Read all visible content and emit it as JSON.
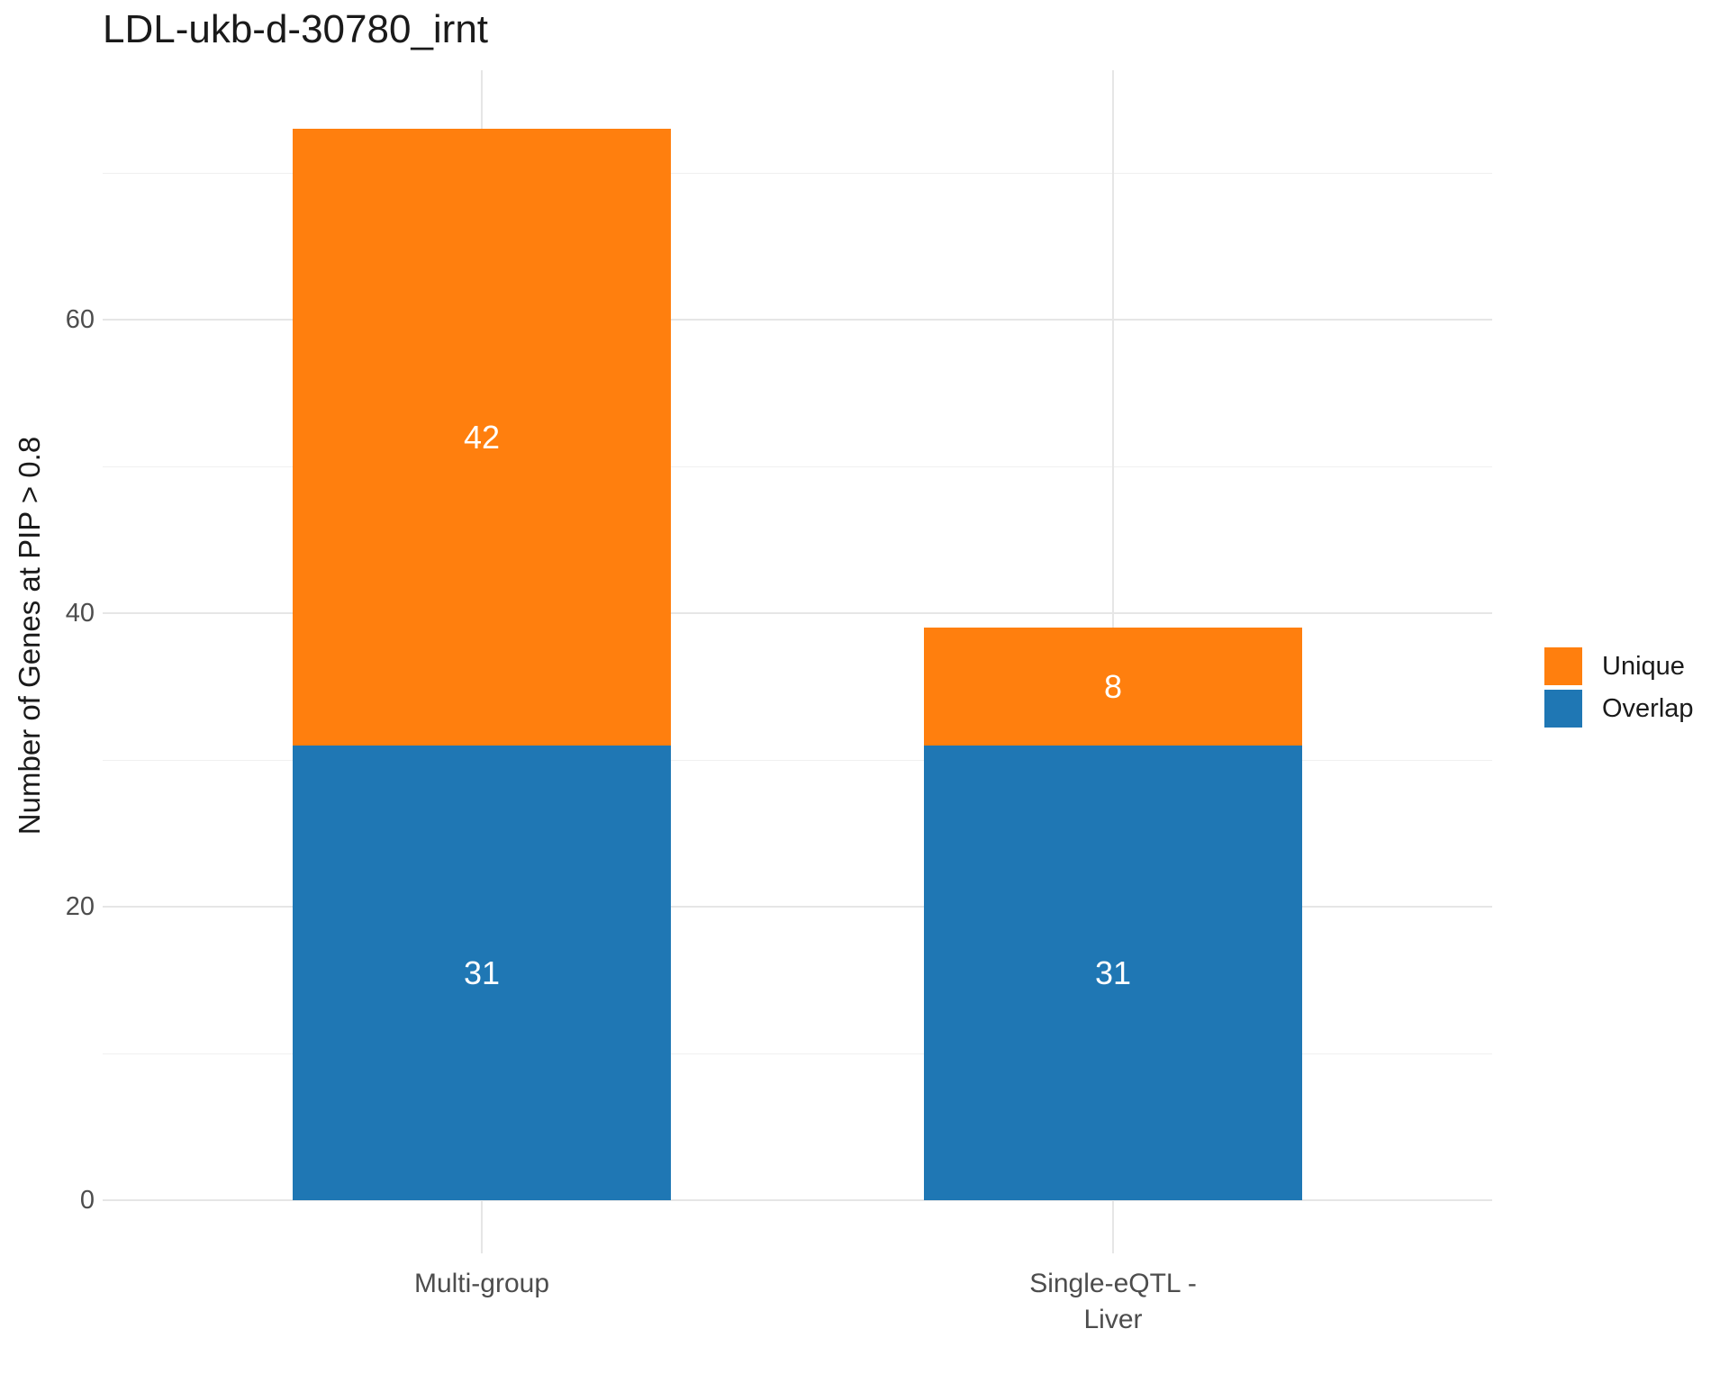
{
  "title": "LDL-ukb-d-30780_irnt",
  "chart_data": {
    "type": "bar",
    "stacked": true,
    "orientation": "vertical",
    "title": "LDL-ukb-d-30780_irnt",
    "xlabel": "",
    "ylabel": "Number of Genes at PIP > 0.8",
    "categories": [
      "Multi-group",
      "Single-eQTL -\nLiver"
    ],
    "series": [
      {
        "name": "Overlap",
        "color": "#1F77B4",
        "values": [
          31,
          31
        ]
      },
      {
        "name": "Unique",
        "color": "#FF7F0E",
        "values": [
          42,
          8
        ]
      }
    ],
    "stack_totals": [
      73,
      39
    ],
    "bar_value_labels": {
      "shown": true,
      "color": "#FFFFFF",
      "values": [
        [
          31,
          31
        ],
        [
          42,
          8
        ]
      ]
    },
    "ylim": [
      0,
      73
    ],
    "yticks_major": [
      0,
      20,
      40,
      60
    ],
    "yticks_minor": [
      10,
      30,
      50,
      70
    ],
    "grid": {
      "horizontal": "major and minor light gray",
      "vertical": "at category centers"
    },
    "legend_position": "right",
    "legend_order": [
      "Unique",
      "Overlap"
    ],
    "background": "#FFFFFF",
    "gridline_major_color": "#E6E6E6",
    "gridline_minor_color": "#F0F0F0",
    "tick_text_color": "#4D4D4D"
  },
  "legend": {
    "items": [
      {
        "label": "Unique",
        "color": "#FF7F0E"
      },
      {
        "label": "Overlap",
        "color": "#1F77B4"
      }
    ]
  }
}
